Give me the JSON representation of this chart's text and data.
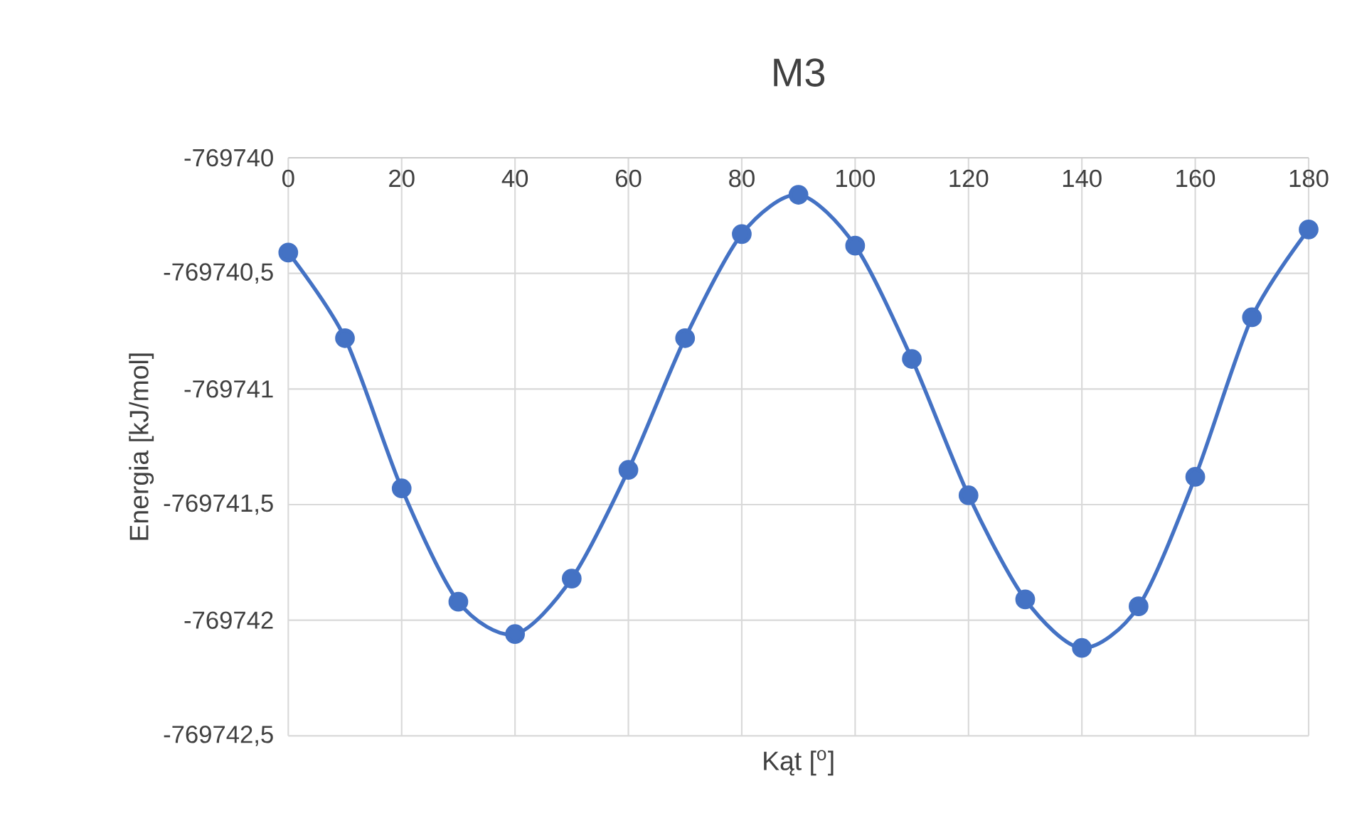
{
  "chart_data": {
    "type": "line",
    "title": "M3",
    "xlabel": "Kąt [$^{o}$]",
    "ylabel": "Energia [kJ/mol]",
    "x": [
      0,
      10,
      20,
      30,
      40,
      50,
      60,
      70,
      80,
      90,
      100,
      110,
      120,
      130,
      140,
      150,
      160,
      170,
      180
    ],
    "series": [
      {
        "color": "#4472c4",
        "values": [
          -769740.41,
          -769740.78,
          -769741.43,
          -769741.92,
          -769742.06,
          -769741.82,
          -769741.35,
          -769740.78,
          -769740.33,
          -769740.16,
          -769740.38,
          -769740.87,
          -769741.46,
          -769741.91,
          -769742.12,
          -769741.94,
          -769741.38,
          -769740.69,
          -769740.31
        ]
      }
    ],
    "xlim": [
      0,
      180
    ],
    "xticks": [
      0,
      20,
      40,
      60,
      80,
      100,
      120,
      140,
      160,
      180
    ],
    "ylim": [
      -769742.5,
      -769740
    ],
    "yticks": [
      {
        "value": -769742.5,
        "label": "-769742,5"
      },
      -769742,
      {
        "value": -769741.5,
        "label": "-769741,5"
      },
      -769741,
      {
        "value": -769740.5,
        "label": "-769740,5"
      },
      -769740
    ],
    "grid": true,
    "marker": "circle",
    "line_style": "solid"
  }
}
